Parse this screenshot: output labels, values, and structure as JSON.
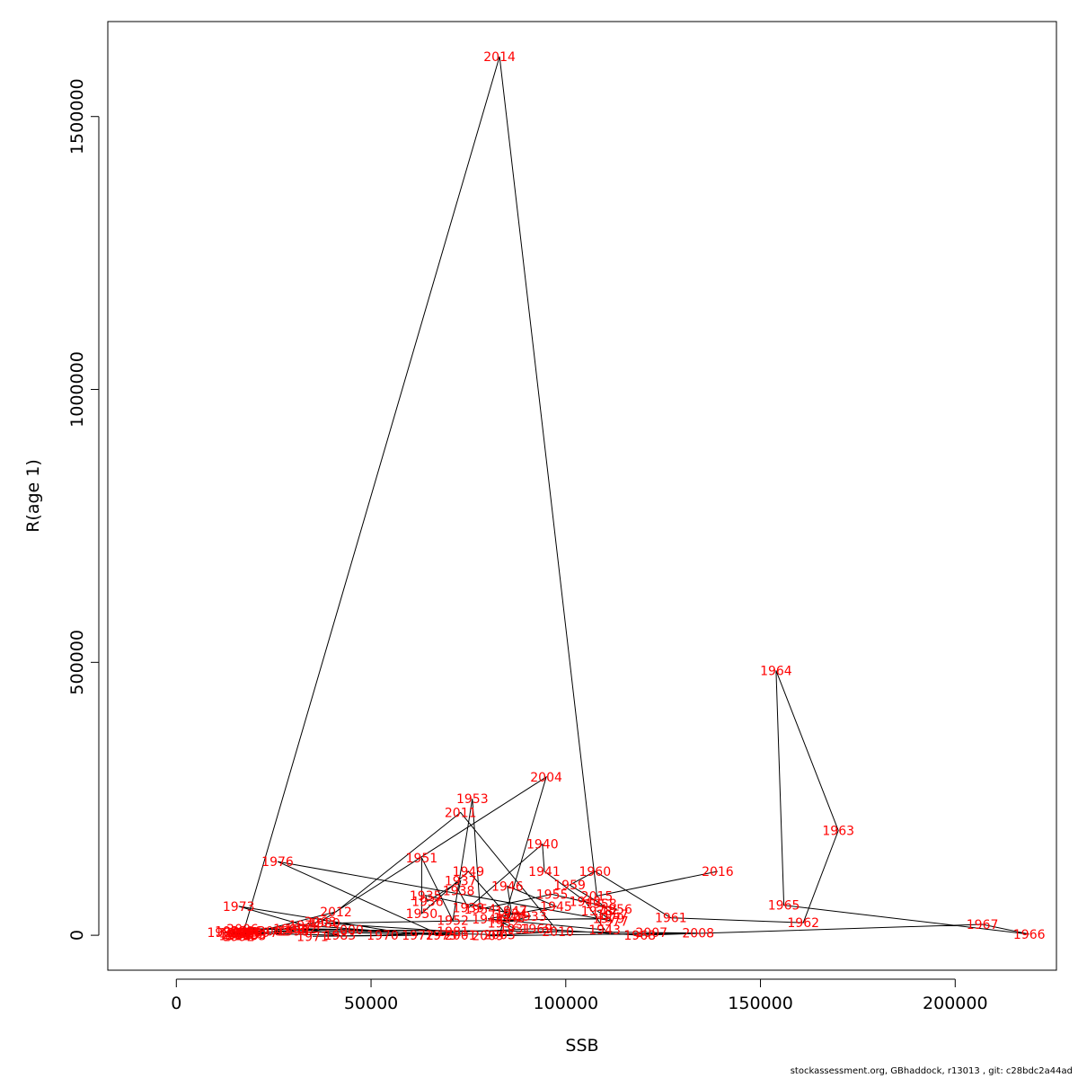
{
  "chart_data": {
    "type": "line",
    "title": "",
    "xlabel": "SSB",
    "ylabel": "R(age 1)",
    "xlim": [
      -17600,
      226000
    ],
    "ylim": [
      -64000,
      1674000
    ],
    "xticks": [
      0,
      50000,
      100000,
      150000,
      200000
    ],
    "xtick_labels": [
      "0",
      "50000",
      "100000",
      "150000",
      "200000"
    ],
    "yticks": [
      0,
      500000,
      1000000,
      1500000
    ],
    "ytick_labels": [
      "0",
      "500000",
      "1000000",
      "1500000"
    ],
    "grid": false,
    "legend": "none",
    "line_color": "#000000",
    "label_color": "#ff0000",
    "points": [
      {
        "year": "1931",
        "x": 87000,
        "y": 12000
      },
      {
        "year": "1932",
        "x": 84000,
        "y": 22000
      },
      {
        "year": "1933",
        "x": 91000,
        "y": 35000
      },
      {
        "year": "1934",
        "x": 86000,
        "y": 40000
      },
      {
        "year": "1935",
        "x": 64000,
        "y": 73000
      },
      {
        "year": "1936",
        "x": 64500,
        "y": 62000
      },
      {
        "year": "1937",
        "x": 73000,
        "y": 100000
      },
      {
        "year": "1938",
        "x": 72500,
        "y": 82000
      },
      {
        "year": "1939",
        "x": 75000,
        "y": 50000
      },
      {
        "year": "1940",
        "x": 94000,
        "y": 167000
      },
      {
        "year": "1941",
        "x": 94500,
        "y": 117000
      },
      {
        "year": "1942",
        "x": 105000,
        "y": 62000
      },
      {
        "year": "1943",
        "x": 110000,
        "y": 10000
      },
      {
        "year": "1944",
        "x": 80000,
        "y": 30000
      },
      {
        "year": "1945",
        "x": 97500,
        "y": 53000
      },
      {
        "year": "1946",
        "x": 85000,
        "y": 90000
      },
      {
        "year": "1947",
        "x": 86000,
        "y": 45000
      },
      {
        "year": "1948",
        "x": 85500,
        "y": 32000
      },
      {
        "year": "1949",
        "x": 75000,
        "y": 117000
      },
      {
        "year": "1950",
        "x": 63000,
        "y": 40000
      },
      {
        "year": "1951",
        "x": 63000,
        "y": 142000
      },
      {
        "year": "1952",
        "x": 71000,
        "y": 27000
      },
      {
        "year": "1953",
        "x": 76000,
        "y": 250000
      },
      {
        "year": "1954",
        "x": 78000,
        "y": 48000
      },
      {
        "year": "1955",
        "x": 96500,
        "y": 75000
      },
      {
        "year": "1956",
        "x": 113000,
        "y": 48000
      },
      {
        "year": "1957",
        "x": 112000,
        "y": 38000
      },
      {
        "year": "1958",
        "x": 109000,
        "y": 58000
      },
      {
        "year": "1959",
        "x": 101000,
        "y": 92000
      },
      {
        "year": "1960",
        "x": 107500,
        "y": 117000
      },
      {
        "year": "1961",
        "x": 127000,
        "y": 32000
      },
      {
        "year": "1962",
        "x": 161000,
        "y": 23000
      },
      {
        "year": "1963",
        "x": 170000,
        "y": 192000
      },
      {
        "year": "1964",
        "x": 154000,
        "y": 485000
      },
      {
        "year": "1965",
        "x": 156000,
        "y": 55000
      },
      {
        "year": "1966",
        "x": 219000,
        "y": 2000
      },
      {
        "year": "1967",
        "x": 207000,
        "y": 20000
      },
      {
        "year": "1968",
        "x": 119000,
        "y": 0
      },
      {
        "year": "1969",
        "x": 92500,
        "y": 12000
      },
      {
        "year": "1970",
        "x": 53000,
        "y": 0
      },
      {
        "year": "1971",
        "x": 35000,
        "y": -2000
      },
      {
        "year": "1972",
        "x": 62000,
        "y": 0
      },
      {
        "year": "1973",
        "x": 16000,
        "y": 53000
      },
      {
        "year": "1974",
        "x": 33000,
        "y": 18000
      },
      {
        "year": "1975",
        "x": 68000,
        "y": 0
      },
      {
        "year": "1976",
        "x": 26000,
        "y": 135000
      },
      {
        "year": "1977",
        "x": 112000,
        "y": 26000
      },
      {
        "year": "1978",
        "x": 108000,
        "y": 45000
      },
      {
        "year": "1979",
        "x": 111000,
        "y": 31000
      },
      {
        "year": "1980",
        "x": 38000,
        "y": 22000
      },
      {
        "year": "1981",
        "x": 71000,
        "y": 7000
      },
      {
        "year": "1982",
        "x": 32000,
        "y": 12000
      },
      {
        "year": "1983",
        "x": 42000,
        "y": 0
      },
      {
        "year": "1984",
        "x": 12000,
        "y": 5000
      },
      {
        "year": "1985",
        "x": 17000,
        "y": 1000
      },
      {
        "year": "1986",
        "x": 18000,
        "y": 3000
      },
      {
        "year": "1987",
        "x": 16500,
        "y": 6000
      },
      {
        "year": "1988",
        "x": 15000,
        "y": 4000
      },
      {
        "year": "1989",
        "x": 19000,
        "y": 2000
      },
      {
        "year": "1990",
        "x": 14000,
        "y": 8000
      },
      {
        "year": "1991",
        "x": 15500,
        "y": 2000
      },
      {
        "year": "1992",
        "x": 16000,
        "y": -2000
      },
      {
        "year": "1993",
        "x": 15000,
        "y": -1000
      },
      {
        "year": "1994",
        "x": 17500,
        "y": 5000
      },
      {
        "year": "1995",
        "x": 19000,
        "y": -1000
      },
      {
        "year": "1996",
        "x": 18000,
        "y": 8000
      },
      {
        "year": "1997",
        "x": 22000,
        "y": 5000
      },
      {
        "year": "1998",
        "x": 30000,
        "y": 8000
      },
      {
        "year": "1999",
        "x": 29000,
        "y": 12000
      },
      {
        "year": "2000",
        "x": 44000,
        "y": 10000
      },
      {
        "year": "2001",
        "x": 73000,
        "y": 0
      },
      {
        "year": "2002",
        "x": 25000,
        "y": 8000
      },
      {
        "year": "2003",
        "x": 37000,
        "y": 25000
      },
      {
        "year": "2004",
        "x": 95000,
        "y": 290000
      },
      {
        "year": "2005",
        "x": 83000,
        "y": 1000
      },
      {
        "year": "2006",
        "x": 17000,
        "y": 12000
      },
      {
        "year": "2007",
        "x": 122000,
        "y": 5000
      },
      {
        "year": "2008",
        "x": 134000,
        "y": 4000
      },
      {
        "year": "2009",
        "x": 80000,
        "y": -1000
      },
      {
        "year": "2010",
        "x": 98000,
        "y": 7000
      },
      {
        "year": "2011",
        "x": 73000,
        "y": 225000
      },
      {
        "year": "2012",
        "x": 41000,
        "y": 43000
      },
      {
        "year": "2013",
        "x": 17000,
        "y": 0
      },
      {
        "year": "2014",
        "x": 83000,
        "y": 1610000
      },
      {
        "year": "2015",
        "x": 108000,
        "y": 72000
      },
      {
        "year": "2016",
        "x": 139000,
        "y": 117000
      }
    ]
  },
  "footer": {
    "text": "stockassessment.org, GBhaddock, r13013 , git: c28bdc2a44ad"
  }
}
